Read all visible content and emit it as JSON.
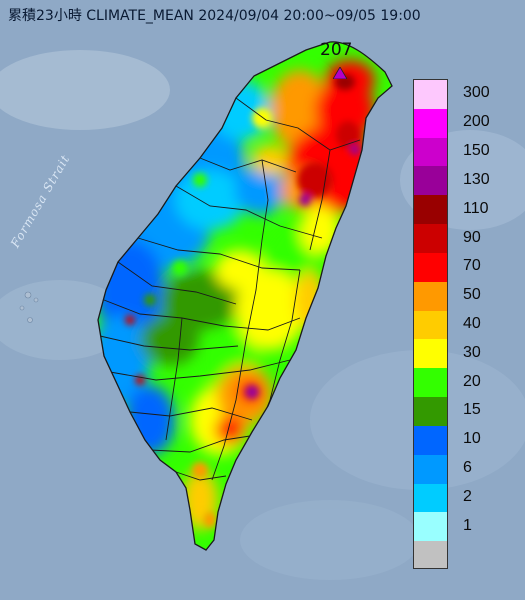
{
  "title": "累積23小時 CLIMATE_MEAN 2024/09/04 20:00~09/05 19:00",
  "strait_label": "Formosa Strait",
  "peak": {
    "value": "207",
    "marker_color": "#b400c8"
  },
  "colors": {
    "sea": "#8fa9c6",
    "land_outline": "#1a1a1a"
  },
  "legend": {
    "items": [
      {
        "label": "300",
        "color": "#fdc8fd"
      },
      {
        "label": "200",
        "color": "#ff00ff"
      },
      {
        "label": "150",
        "color": "#cc00cc"
      },
      {
        "label": "130",
        "color": "#990099"
      },
      {
        "label": "110",
        "color": "#990000"
      },
      {
        "label": "90",
        "color": "#cc0000"
      },
      {
        "label": "70",
        "color": "#ff0000"
      },
      {
        "label": "50",
        "color": "#ff9900"
      },
      {
        "label": "40",
        "color": "#ffcc00"
      },
      {
        "label": "30",
        "color": "#ffff00"
      },
      {
        "label": "20",
        "color": "#33ff00"
      },
      {
        "label": "15",
        "color": "#339900"
      },
      {
        "label": "10",
        "color": "#0066ff"
      },
      {
        "label": "6",
        "color": "#0099ff"
      },
      {
        "label": "2",
        "color": "#00ccff"
      },
      {
        "label": "1",
        "color": "#99ffff"
      },
      {
        "label": "",
        "color": "#c1c1c1"
      }
    ]
  }
}
